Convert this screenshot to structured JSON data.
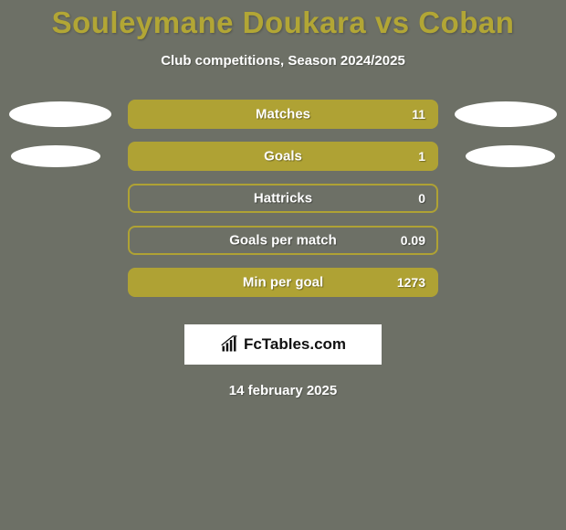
{
  "colors": {
    "page_bg": "#6d7066",
    "title_color": "#b2a635",
    "subtitle_color": "#ffffff",
    "side_oval_fill": "#ffffff",
    "logo_bg": "#ffffff",
    "date_color": "#ffffff"
  },
  "title": "Souleymane Doukara vs Coban",
  "subtitle": "Club competitions, Season 2024/2025",
  "rows": [
    {
      "label": "Matches",
      "value": "11",
      "bar_fill": "#afa234",
      "bar_border": "#afa234",
      "label_color": "#ffffff",
      "value_color": "#ffffff",
      "show_ovals": true,
      "oval_size": "large"
    },
    {
      "label": "Goals",
      "value": "1",
      "bar_fill": "#afa234",
      "bar_border": "#afa234",
      "label_color": "#ffffff",
      "value_color": "#ffffff",
      "show_ovals": true,
      "oval_size": "small"
    },
    {
      "label": "Hattricks",
      "value": "0",
      "bar_fill": "#6d7066",
      "bar_border": "#afa234",
      "label_color": "#ffffff",
      "value_color": "#ffffff",
      "show_ovals": false
    },
    {
      "label": "Goals per match",
      "value": "0.09",
      "bar_fill": "#6d7066",
      "bar_border": "#afa234",
      "label_color": "#ffffff",
      "value_color": "#ffffff",
      "show_ovals": false
    },
    {
      "label": "Min per goal",
      "value": "1273",
      "bar_fill": "#afa234",
      "bar_border": "#afa234",
      "label_color": "#ffffff",
      "value_color": "#ffffff",
      "show_ovals": false
    }
  ],
  "logo_text": "FcTables.com",
  "date": "14 february 2025"
}
